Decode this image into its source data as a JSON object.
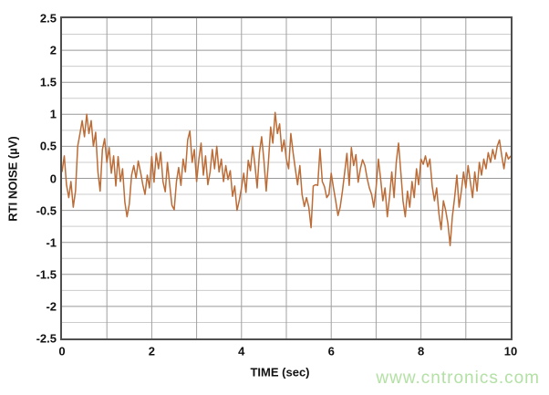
{
  "colors": {
    "trace": "#bc6c37",
    "grid_major": "#999999",
    "grid_minor": "#cccccc",
    "grid_vertical": "#a0a0a0",
    "plot_border": "#4f4f4f",
    "label_text": "#111111",
    "watermark": "#b3e0a4",
    "background": "#ffffff"
  },
  "labels": {
    "ylabel": "RTI NOISE (µV)",
    "xlabel": "TIME (sec)",
    "watermark": "www.cntronics.com"
  },
  "chart_data": {
    "type": "line",
    "title": "",
    "xlabel": "TIME (sec)",
    "ylabel": "RTI NOISE (µV)",
    "xlim": [
      0,
      10
    ],
    "ylim": [
      -2.5,
      2.5
    ],
    "grid": {
      "x_step": 1,
      "y_minor_step": 0.25,
      "y_major_step": 0.5
    },
    "legend": "none",
    "x_ticks": [
      {
        "label": "0",
        "value": 0
      },
      {
        "label": "2",
        "value": 2
      },
      {
        "label": "4",
        "value": 4
      },
      {
        "label": "6",
        "value": 6
      },
      {
        "label": "8",
        "value": 8
      },
      {
        "label": "10",
        "value": 10
      }
    ],
    "y_ticks": [
      {
        "label": "2.5",
        "value": 2.5
      },
      {
        "label": "2",
        "value": 2
      },
      {
        "label": "1.5",
        "value": 1.5
      },
      {
        "label": "1",
        "value": 1
      },
      {
        "label": "0.5",
        "value": 0.5
      },
      {
        "label": "0",
        "value": 0
      },
      {
        "label": "-0.5",
        "value": -0.5
      },
      {
        "label": "-1",
        "value": -1
      },
      {
        "label": "-1.5",
        "value": -1.5
      },
      {
        "label": "-2",
        "value": -2
      },
      {
        "label": "-2.5",
        "value": -2.5
      }
    ],
    "x_start": 0,
    "x_step": 0.05,
    "values": [
      0.1,
      0.35,
      -0.1,
      -0.3,
      -0.05,
      -0.45,
      -0.2,
      0.5,
      0.7,
      0.9,
      0.65,
      1.0,
      0.7,
      0.9,
      0.5,
      0.72,
      0.1,
      -0.2,
      0.45,
      0.62,
      0.25,
      0.48,
      0.08,
      0.35,
      -0.12,
      0.34,
      -0.05,
      0.15,
      -0.37,
      -0.6,
      -0.4,
      0.05,
      0.2,
      0.0,
      0.27,
      0.1,
      -0.1,
      -0.25,
      0.05,
      -0.15,
      0.34,
      -0.06,
      0.39,
      0.15,
      0.41,
      -0.05,
      -0.21,
      0.25,
      -0.1,
      -0.42,
      -0.49,
      -0.05,
      0.17,
      -0.11,
      0.3,
      0.1,
      0.6,
      0.74,
      0.25,
      0.45,
      -0.05,
      0.3,
      0.55,
      0.05,
      0.35,
      -0.1,
      0.1,
      0.45,
      0.15,
      0.5,
      0.1,
      0.3,
      -0.05,
      0.2,
      -0.02,
      0.12,
      -0.28,
      -0.12,
      -0.5,
      -0.35,
      -0.15,
      0.08,
      -0.22,
      0.28,
      0.12,
      0.5,
      0.2,
      -0.15,
      0.4,
      0.65,
      0.28,
      -0.2,
      0.25,
      0.8,
      0.55,
      1.03,
      0.7,
      0.85,
      0.42,
      0.6,
      0.3,
      0.15,
      0.7,
      0.4,
      0.15,
      -0.1,
      0.2,
      -0.25,
      -0.44,
      -0.3,
      -0.45,
      -0.77,
      -0.12,
      -0.1,
      -0.11,
      0.46,
      -0.05,
      -0.13,
      -0.3,
      -0.25,
      0.08,
      -0.15,
      -0.35,
      -0.58,
      -0.45,
      -0.2,
      0.1,
      0.39,
      -0.11,
      0.48,
      0.2,
      0.37,
      -0.06,
      0.15,
      0.29,
      0.2,
      0.0,
      -0.15,
      -0.25,
      -0.45,
      -0.15,
      0.3,
      0.0,
      -0.35,
      -0.15,
      -0.6,
      -0.28,
      0.1,
      -0.3,
      0.25,
      0.55,
      0.1,
      -0.35,
      -0.6,
      -0.2,
      -0.45,
      -0.05,
      -0.3,
      0.15,
      -0.1,
      0.3,
      0.22,
      0.35,
      0.18,
      0.3,
      -0.12,
      -0.35,
      -0.15,
      -0.55,
      -0.8,
      -0.35,
      -0.5,
      -0.7,
      -1.05,
      -0.6,
      -0.3,
      0.05,
      -0.45,
      -0.2,
      0.1,
      -0.15,
      0.2,
      -0.05,
      -0.3,
      0.1,
      -0.2,
      0.25,
      0.05,
      0.3,
      0.15,
      0.4,
      0.25,
      0.45,
      0.3,
      0.5,
      0.6,
      0.35,
      0.15,
      0.4,
      0.3,
      0.35
    ]
  }
}
